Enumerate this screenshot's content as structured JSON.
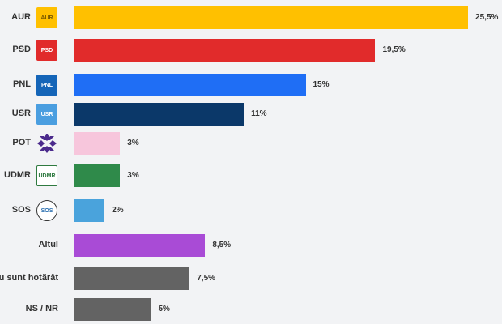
{
  "chart_data": {
    "type": "bar",
    "orientation": "horizontal",
    "title": "",
    "xlabel": "",
    "ylabel": "",
    "xlim": [
      0,
      27
    ],
    "grid": false,
    "categories": [
      "AUR",
      "PSD",
      "PNL",
      "USR",
      "POT",
      "UDMR",
      "SOS",
      "Altul",
      "Nu sunt hotărât",
      "NS / NR"
    ],
    "values": [
      25.5,
      19.5,
      15,
      11,
      3,
      3,
      2,
      8.5,
      7.5,
      5
    ],
    "value_labels": [
      "25,5%",
      "19,5%",
      "15%",
      "11%",
      "3%",
      "3%",
      "2%",
      "8,5%",
      "7,5%",
      "5%"
    ],
    "colors": [
      "#ffc000",
      "#e12b2b",
      "#1f6ef5",
      "#0b3869",
      "#f7c6dc",
      "#2f8a4a",
      "#4aa3dc",
      "#a94bd6",
      "#636363",
      "#636363"
    ],
    "logos": [
      "AUR",
      "PSD",
      "PNL",
      "USR",
      "",
      "UDMR",
      "SOS",
      "",
      "",
      ""
    ]
  }
}
